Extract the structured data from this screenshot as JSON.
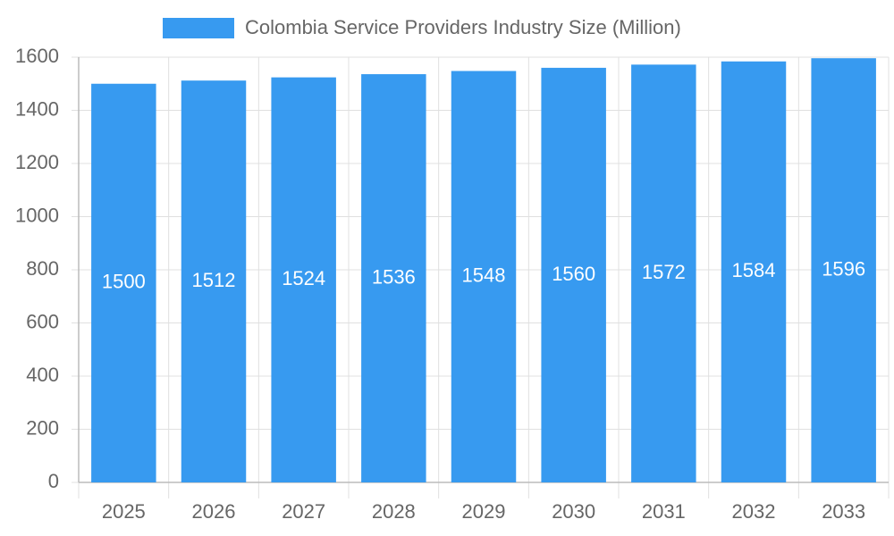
{
  "chart_data": {
    "type": "bar",
    "categories": [
      "2025",
      "2026",
      "2027",
      "2028",
      "2029",
      "2030",
      "2031",
      "2032",
      "2033"
    ],
    "series": [
      {
        "name": "Colombia Service Providers Industry Size (Million)",
        "color": "#379af0",
        "values": [
          1500,
          1512,
          1524,
          1536,
          1548,
          1560,
          1572,
          1584,
          1596
        ]
      }
    ],
    "ylim": [
      0,
      1600
    ],
    "yticks": [
      0,
      200,
      400,
      600,
      800,
      1000,
      1200,
      1400,
      1600
    ],
    "grid": true,
    "legend": "top"
  }
}
